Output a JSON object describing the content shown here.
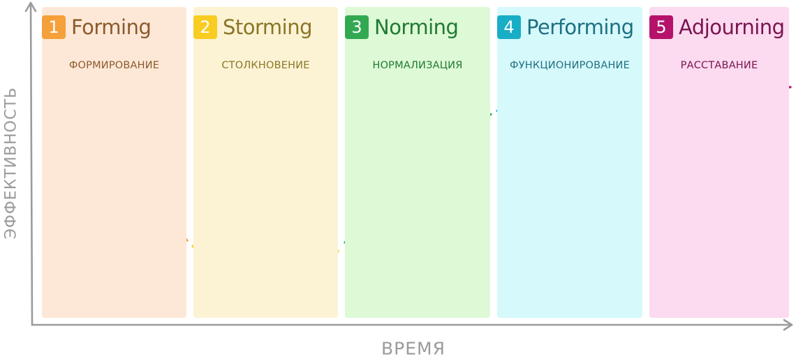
{
  "axes": {
    "y_label": "ЭФФЕКТИВНОСТЬ",
    "x_label": "ВРЕМЯ"
  },
  "stages": [
    {
      "number": "1",
      "name_en": "Forming",
      "name_ru": "ФОРМИРОВАНИЕ",
      "accent": "#f5a03a",
      "panel_bg": "#fde8d7",
      "text_color": "#8b5a2b",
      "curve_style": "solid"
    },
    {
      "number": "2",
      "name_en": "Storming",
      "name_ru": "СТОЛКНОВЕНИЕ",
      "accent": "#f9cc22",
      "panel_bg": "#fcf3d5",
      "text_color": "#8a7526",
      "curve_style": "solid"
    },
    {
      "number": "3",
      "name_en": "Norming",
      "name_ru": "НОРМАЛИЗАЦИЯ",
      "accent": "#33a852",
      "panel_bg": "#def9d6",
      "text_color": "#1f7a33",
      "curve_style": "solid"
    },
    {
      "number": "4",
      "name_en": "Performing",
      "name_ru": "ФУНКЦИОНИРОВАНИЕ",
      "accent": "#18aec6",
      "panel_bg": "#d6f9fb",
      "text_color": "#1f6f82",
      "curve_style": "solid-arrow"
    },
    {
      "number": "5",
      "name_en": "Adjourning",
      "name_ru": "РАССТАВАНИЕ",
      "accent": "#b5136b",
      "panel_bg": "#fcdaef",
      "text_color": "#7a1451",
      "curve_style": "dashed"
    }
  ],
  "colors": {
    "axis": "#9b9b9b"
  }
}
